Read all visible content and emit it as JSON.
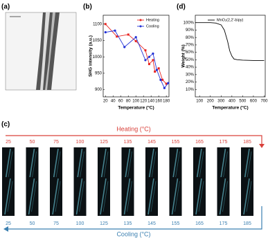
{
  "panels": {
    "a": "(a)",
    "b": "(b)",
    "c": "(c)",
    "d": "(d)"
  },
  "chart_data": [
    {
      "type": "line",
      "xlabel": "Temperature (°C)",
      "ylabel": "SHG intensity (a.u.)",
      "xlim": [
        14,
        187
      ],
      "xticks": [
        20,
        40,
        60,
        80,
        100,
        120,
        140,
        160,
        180
      ],
      "ylim": [
        878,
        1127
      ],
      "yticks": [
        900,
        950,
        1000,
        1050,
        1100
      ],
      "legend": "upper right",
      "series": [
        {
          "name": "Heating",
          "color": "#e8231f",
          "marker": "square",
          "x": [
            20,
            50,
            80,
            100,
            125,
            135,
            145,
            150,
            160,
            170,
            180
          ],
          "values": [
            1100,
            1062,
            1068,
            1048,
            1020,
            978,
            990,
            955,
            965,
            930,
            918
          ]
        },
        {
          "name": "Cooling",
          "color": "#1f2fd6",
          "marker": "circle",
          "x": [
            20,
            45,
            70,
            100,
            125,
            135,
            145,
            155,
            165,
            175,
            185
          ],
          "values": [
            1075,
            1080,
            1030,
            1060,
            990,
            1000,
            1010,
            960,
            930,
            905,
            920
          ]
        }
      ]
    },
    {
      "type": "line",
      "xlabel": "Temperature (°C)",
      "ylabel": "Weight (%)",
      "xlim": [
        60,
        710
      ],
      "xticks": [
        100,
        200,
        300,
        400,
        500,
        600,
        700
      ],
      "ylim": [
        0,
        110
      ],
      "yticks": [
        {
          "value": 10,
          "label": "10%"
        },
        {
          "value": 20,
          "label": "20%"
        },
        {
          "value": 30,
          "label": "30%"
        },
        {
          "value": 40,
          "label": "40%"
        },
        {
          "value": 50,
          "label": "50%"
        },
        {
          "value": 60,
          "label": "60%"
        },
        {
          "value": 70,
          "label": "70%"
        },
        {
          "value": 80,
          "label": "80%"
        },
        {
          "value": 90,
          "label": "90%"
        },
        {
          "value": 100,
          "label": "100%"
        }
      ],
      "legend": "upper right",
      "series": [
        {
          "name": "MnO₂(2,2'-bipy)",
          "color": "#000000",
          "x": [
            60,
            100,
            200,
            250,
            300,
            330,
            360,
            380,
            400,
            420,
            450,
            500,
            600,
            700
          ],
          "values": [
            100,
            100,
            100,
            99.5,
            97,
            90,
            75,
            62,
            55,
            51,
            50,
            49.5,
            49,
            49
          ]
        }
      ]
    }
  ],
  "sequence": {
    "heating_title": "Heating (°C)",
    "cooling_title": "Cooling (°C)",
    "heating_labels": [
      25,
      50,
      75,
      100,
      125,
      135,
      145,
      155,
      165,
      175,
      185
    ],
    "cooling_labels": [
      25,
      50,
      75,
      100,
      125,
      135,
      145,
      155,
      165,
      175,
      185
    ]
  }
}
